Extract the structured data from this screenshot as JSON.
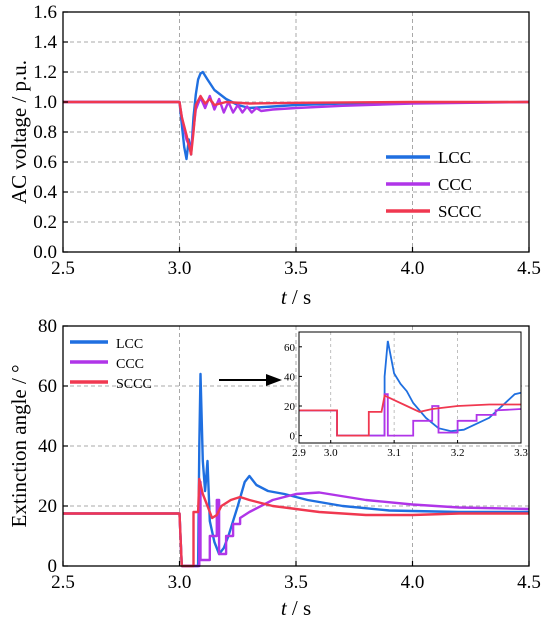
{
  "chart_data": [
    {
      "type": "line",
      "xlabel_var": "t",
      "xlabel_unit": " / s",
      "ylabel": "AC voltage / p.u.",
      "xlim": [
        2.5,
        4.5
      ],
      "ylim": [
        0.0,
        1.6
      ],
      "xticks": [
        "2.5",
        "3.0",
        "3.5",
        "4.0",
        "4.5"
      ],
      "yticks": [
        "0.0",
        "0.2",
        "0.4",
        "0.6",
        "0.8",
        "1.0",
        "1.2",
        "1.4",
        "1.6"
      ],
      "grid": true,
      "legend_position": "bottom-right",
      "series": [
        {
          "name": "LCC",
          "color": "#1f6fe0",
          "points": [
            [
              2.5,
              1.0
            ],
            [
              3.0,
              1.0
            ],
            [
              3.01,
              0.85
            ],
            [
              3.02,
              0.7
            ],
            [
              3.03,
              0.62
            ],
            [
              3.04,
              0.75
            ],
            [
              3.05,
              0.65
            ],
            [
              3.06,
              0.9
            ],
            [
              3.07,
              1.05
            ],
            [
              3.08,
              1.15
            ],
            [
              3.09,
              1.19
            ],
            [
              3.1,
              1.2
            ],
            [
              3.12,
              1.15
            ],
            [
              3.15,
              1.08
            ],
            [
              3.2,
              1.02
            ],
            [
              3.25,
              0.98
            ],
            [
              3.3,
              0.96
            ],
            [
              3.4,
              0.97
            ],
            [
              3.5,
              0.98
            ],
            [
              3.7,
              0.99
            ],
            [
              4.0,
              0.995
            ],
            [
              4.5,
              1.0
            ]
          ]
        },
        {
          "name": "CCC",
          "color": "#b035e8",
          "points": [
            [
              2.5,
              1.0
            ],
            [
              3.0,
              1.0
            ],
            [
              3.01,
              0.9
            ],
            [
              3.03,
              0.75
            ],
            [
              3.05,
              0.68
            ],
            [
              3.07,
              0.95
            ],
            [
              3.09,
              1.03
            ],
            [
              3.11,
              0.96
            ],
            [
              3.13,
              1.04
            ],
            [
              3.15,
              0.95
            ],
            [
              3.17,
              1.02
            ],
            [
              3.19,
              0.93
            ],
            [
              3.21,
              1.0
            ],
            [
              3.23,
              0.93
            ],
            [
              3.25,
              0.98
            ],
            [
              3.27,
              0.93
            ],
            [
              3.29,
              0.97
            ],
            [
              3.31,
              0.93
            ],
            [
              3.33,
              0.96
            ],
            [
              3.35,
              0.94
            ],
            [
              3.4,
              0.95
            ],
            [
              3.5,
              0.96
            ],
            [
              3.7,
              0.975
            ],
            [
              4.0,
              0.99
            ],
            [
              4.5,
              1.0
            ]
          ]
        },
        {
          "name": "SCCC",
          "color": "#f03850",
          "points": [
            [
              2.5,
              1.0
            ],
            [
              3.0,
              1.0
            ],
            [
              3.01,
              0.9
            ],
            [
              3.03,
              0.78
            ],
            [
              3.05,
              0.65
            ],
            [
              3.06,
              0.8
            ],
            [
              3.07,
              0.98
            ],
            [
              3.09,
              1.04
            ],
            [
              3.11,
              0.99
            ],
            [
              3.13,
              1.02
            ],
            [
              3.15,
              0.98
            ],
            [
              3.2,
              1.0
            ],
            [
              3.3,
              0.99
            ],
            [
              3.5,
              0.995
            ],
            [
              4.0,
              1.0
            ],
            [
              4.5,
              1.0
            ]
          ]
        }
      ]
    },
    {
      "type": "line",
      "xlabel_var": "t",
      "xlabel_unit": " / s",
      "ylabel": "Extinction angle / °",
      "xlim": [
        2.5,
        4.5
      ],
      "ylim": [
        0,
        80
      ],
      "xticks": [
        "2.5",
        "3.0",
        "3.5",
        "4.0",
        "4.5"
      ],
      "yticks": [
        "0",
        "20",
        "40",
        "60",
        "80"
      ],
      "grid": true,
      "legend_position": "top-left",
      "series": [
        {
          "name": "LCC",
          "color": "#1f6fe0",
          "points": [
            [
              2.5,
              17.5
            ],
            [
              3.0,
              17.5
            ],
            [
              3.01,
              0
            ],
            [
              3.08,
              0
            ],
            [
              3.085,
              40
            ],
            [
              3.09,
              64
            ],
            [
              3.1,
              35
            ],
            [
              3.11,
              25
            ],
            [
              3.12,
              35
            ],
            [
              3.13,
              15
            ],
            [
              3.15,
              8
            ],
            [
              3.17,
              4
            ],
            [
              3.19,
              6
            ],
            [
              3.21,
              10
            ],
            [
              3.25,
              20
            ],
            [
              3.28,
              28
            ],
            [
              3.3,
              30
            ],
            [
              3.33,
              27
            ],
            [
              3.38,
              25
            ],
            [
              3.45,
              24
            ],
            [
              3.55,
              22
            ],
            [
              3.7,
              20
            ],
            [
              3.9,
              18.5
            ],
            [
              4.2,
              18
            ],
            [
              4.5,
              18
            ]
          ]
        },
        {
          "name": "CCC",
          "color": "#b035e8",
          "points": [
            [
              2.5,
              17.5
            ],
            [
              3.0,
              17.5
            ],
            [
              3.01,
              0
            ],
            [
              3.085,
              0
            ],
            [
              3.085,
              28
            ],
            [
              3.09,
              28
            ],
            [
              3.09,
              2
            ],
            [
              3.13,
              2
            ],
            [
              3.13,
              10
            ],
            [
              3.16,
              10
            ],
            [
              3.16,
              22
            ],
            [
              3.17,
              22
            ],
            [
              3.17,
              4
            ],
            [
              3.2,
              4
            ],
            [
              3.2,
              10
            ],
            [
              3.23,
              10
            ],
            [
              3.23,
              14
            ],
            [
              3.26,
              14
            ],
            [
              3.26,
              16
            ],
            [
              3.3,
              18
            ],
            [
              3.4,
              22
            ],
            [
              3.5,
              24
            ],
            [
              3.6,
              24.5
            ],
            [
              3.8,
              22
            ],
            [
              4.0,
              20.5
            ],
            [
              4.2,
              19.5
            ],
            [
              4.5,
              19
            ]
          ]
        },
        {
          "name": "SCCC",
          "color": "#f03850",
          "points": [
            [
              2.5,
              17.5
            ],
            [
              3.0,
              17.5
            ],
            [
              3.01,
              0
            ],
            [
              3.06,
              0
            ],
            [
              3.06,
              18
            ],
            [
              3.08,
              18
            ],
            [
              3.085,
              29
            ],
            [
              3.1,
              24
            ],
            [
              3.12,
              20
            ],
            [
              3.14,
              16
            ],
            [
              3.16,
              17
            ],
            [
              3.18,
              20
            ],
            [
              3.22,
              22
            ],
            [
              3.26,
              23
            ],
            [
              3.3,
              22
            ],
            [
              3.4,
              20
            ],
            [
              3.5,
              19
            ],
            [
              3.6,
              18
            ],
            [
              3.8,
              17
            ],
            [
              4.0,
              17
            ],
            [
              4.2,
              17.5
            ],
            [
              4.5,
              17.5
            ]
          ]
        }
      ],
      "inset": {
        "xlim": [
          2.95,
          3.3
        ],
        "ylim": [
          -5,
          70
        ],
        "xticks": [
          "2.9",
          "3.0",
          "3.1",
          "3.2",
          "3.3"
        ],
        "yticks": [
          "0",
          "20",
          "40",
          "60"
        ],
        "series": [
          {
            "name": "LCC",
            "color": "#1f6fe0",
            "points": [
              [
                2.95,
                17
              ],
              [
                3.01,
                17
              ],
              [
                3.01,
                0
              ],
              [
                3.085,
                0
              ],
              [
                3.085,
                40
              ],
              [
                3.09,
                64
              ],
              [
                3.1,
                42
              ],
              [
                3.11,
                35
              ],
              [
                3.12,
                30
              ],
              [
                3.13,
                22
              ],
              [
                3.15,
                12
              ],
              [
                3.17,
                5
              ],
              [
                3.19,
                3
              ],
              [
                3.21,
                4
              ],
              [
                3.22,
                6
              ],
              [
                3.25,
                12
              ],
              [
                3.27,
                20
              ],
              [
                3.29,
                28
              ],
              [
                3.3,
                29
              ]
            ]
          },
          {
            "name": "CCC",
            "color": "#b035e8",
            "points": [
              [
                2.95,
                17
              ],
              [
                3.01,
                17
              ],
              [
                3.01,
                0
              ],
              [
                3.085,
                0
              ],
              [
                3.085,
                28
              ],
              [
                3.09,
                28
              ],
              [
                3.09,
                0
              ],
              [
                3.13,
                0
              ],
              [
                3.13,
                10
              ],
              [
                3.16,
                10
              ],
              [
                3.16,
                20
              ],
              [
                3.17,
                20
              ],
              [
                3.17,
                2
              ],
              [
                3.2,
                2
              ],
              [
                3.2,
                10
              ],
              [
                3.23,
                10
              ],
              [
                3.23,
                14
              ],
              [
                3.26,
                14
              ],
              [
                3.26,
                17
              ],
              [
                3.3,
                18
              ]
            ]
          },
          {
            "name": "SCCC",
            "color": "#f03850",
            "points": [
              [
                2.95,
                17
              ],
              [
                3.01,
                17
              ],
              [
                3.01,
                0
              ],
              [
                3.06,
                0
              ],
              [
                3.06,
                16
              ],
              [
                3.08,
                16
              ],
              [
                3.085,
                27
              ],
              [
                3.1,
                24
              ],
              [
                3.12,
                20
              ],
              [
                3.14,
                16
              ],
              [
                3.16,
                18
              ],
              [
                3.18,
                19
              ],
              [
                3.2,
                20
              ],
              [
                3.25,
                21
              ],
              [
                3.3,
                21
              ]
            ]
          }
        ]
      }
    }
  ]
}
